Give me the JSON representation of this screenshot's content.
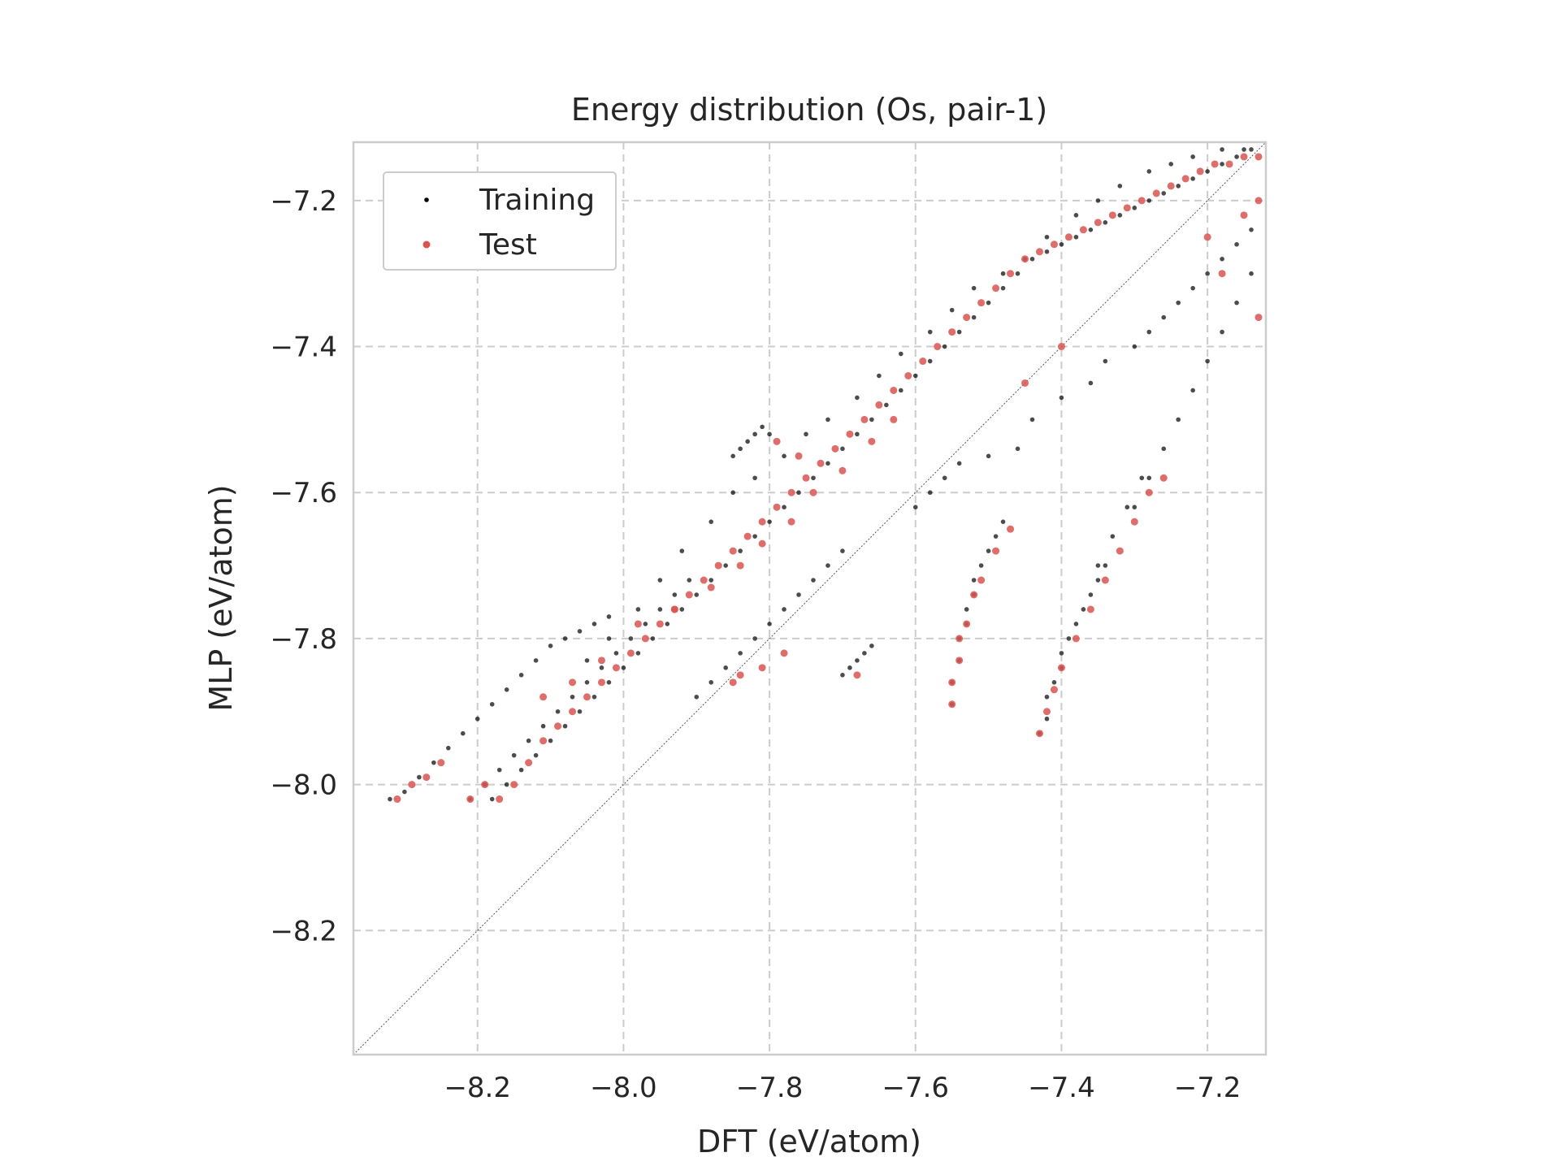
{
  "chart_data": {
    "type": "scatter",
    "title": "Energy distribution (Os, pair-1)",
    "xlabel": "DFT (eV/atom)",
    "ylabel": "MLP (eV/atom)",
    "xlim": [
      -8.37,
      -7.12
    ],
    "ylim": [
      -8.37,
      -7.12
    ],
    "x_ticks": [
      -8.2,
      -8.0,
      -7.8,
      -7.6,
      -7.4,
      -7.2
    ],
    "y_ticks": [
      -8.2,
      -8.0,
      -7.8,
      -7.6,
      -7.4,
      -7.2
    ],
    "x_tick_labels": [
      "−8.2",
      "−8.0",
      "−7.8",
      "−7.6",
      "−7.4",
      "−7.2"
    ],
    "y_tick_labels": [
      "−8.2",
      "−8.0",
      "−7.8",
      "−7.6",
      "−7.4",
      "−7.2"
    ],
    "grid": true,
    "grid_style": "dashed",
    "diagonal_reference_line": true,
    "legend_position": "upper-left",
    "colors": {
      "training": "#000000",
      "test": "#d9534f"
    },
    "series": [
      {
        "name": "Training",
        "x": [
          -8.32,
          -8.3,
          -8.28,
          -8.26,
          -8.24,
          -8.22,
          -8.2,
          -8.18,
          -8.16,
          -8.14,
          -8.12,
          -8.1,
          -8.08,
          -8.06,
          -8.04,
          -8.02,
          -8.21,
          -8.19,
          -8.17,
          -8.15,
          -8.13,
          -8.11,
          -8.09,
          -8.07,
          -8.05,
          -8.03,
          -8.01,
          -7.99,
          -7.97,
          -7.95,
          -7.93,
          -7.91,
          -8.18,
          -8.16,
          -8.14,
          -8.12,
          -8.1,
          -8.08,
          -8.06,
          -8.04,
          -8.02,
          -8.0,
          -7.98,
          -7.96,
          -7.94,
          -7.92,
          -7.9,
          -7.88,
          -7.86,
          -7.84,
          -7.82,
          -7.8,
          -7.78,
          -7.76,
          -7.74,
          -7.72,
          -7.7,
          -7.68,
          -7.66,
          -7.64,
          -7.62,
          -7.6,
          -7.58,
          -7.56,
          -7.54,
          -7.52,
          -7.5,
          -7.48,
          -7.46,
          -7.44,
          -7.42,
          -7.4,
          -7.38,
          -7.36,
          -7.34,
          -7.32,
          -7.3,
          -7.28,
          -7.26,
          -7.24,
          -7.22,
          -7.2,
          -7.18,
          -7.16,
          -7.14,
          -7.9,
          -7.88,
          -7.86,
          -7.84,
          -7.82,
          -7.8,
          -7.78,
          -7.76,
          -7.74,
          -7.72,
          -7.7,
          -7.55,
          -7.55,
          -7.54,
          -7.54,
          -7.53,
          -7.53,
          -7.52,
          -7.52,
          -7.51,
          -7.5,
          -7.49,
          -7.48,
          -7.43,
          -7.42,
          -7.42,
          -7.41,
          -7.4,
          -7.4,
          -7.39,
          -7.38,
          -7.37,
          -7.36,
          -7.35,
          -7.34,
          -7.7,
          -7.69,
          -7.68,
          -7.67,
          -7.66,
          -7.85,
          -7.84,
          -7.83,
          -7.82,
          -7.81,
          -7.8,
          -8.05,
          -8.02,
          -7.98,
          -7.95,
          -7.92,
          -7.88,
          -7.85,
          -7.82,
          -7.78,
          -7.75,
          -7.72,
          -7.68,
          -7.65,
          -7.62,
          -7.58,
          -7.55,
          -7.52,
          -7.48,
          -7.45,
          -7.42,
          -7.38,
          -7.35,
          -7.32,
          -7.28,
          -7.25,
          -7.22,
          -7.18,
          -7.15,
          -7.6,
          -7.58,
          -7.56,
          -7.54,
          -7.5,
          -7.46,
          -7.44,
          -7.4,
          -7.36,
          -7.34,
          -7.3,
          -7.28,
          -7.26,
          -7.24,
          -7.22,
          -7.2,
          -7.18,
          -7.16,
          -7.14,
          -7.3,
          -7.28,
          -7.26,
          -7.24,
          -7.22,
          -7.2,
          -7.18,
          -7.16,
          -7.14,
          -7.35,
          -7.33,
          -7.31,
          -7.29
        ],
        "y": [
          -8.02,
          -8.01,
          -7.99,
          -7.97,
          -7.95,
          -7.93,
          -7.91,
          -7.89,
          -7.87,
          -7.85,
          -7.83,
          -7.81,
          -7.8,
          -7.79,
          -7.78,
          -7.77,
          -8.02,
          -8.0,
          -7.98,
          -7.96,
          -7.94,
          -7.92,
          -7.9,
          -7.88,
          -7.86,
          -7.84,
          -7.82,
          -7.8,
          -7.78,
          -7.76,
          -7.74,
          -7.72,
          -8.02,
          -8.0,
          -7.98,
          -7.96,
          -7.94,
          -7.92,
          -7.9,
          -7.88,
          -7.86,
          -7.84,
          -7.82,
          -7.8,
          -7.78,
          -7.76,
          -7.74,
          -7.72,
          -7.7,
          -7.68,
          -7.66,
          -7.64,
          -7.62,
          -7.6,
          -7.58,
          -7.56,
          -7.54,
          -7.52,
          -7.5,
          -7.48,
          -7.46,
          -7.44,
          -7.42,
          -7.4,
          -7.38,
          -7.36,
          -7.34,
          -7.32,
          -7.3,
          -7.28,
          -7.27,
          -7.26,
          -7.25,
          -7.24,
          -7.23,
          -7.22,
          -7.21,
          -7.2,
          -7.19,
          -7.18,
          -7.17,
          -7.16,
          -7.15,
          -7.14,
          -7.13,
          -7.88,
          -7.86,
          -7.84,
          -7.82,
          -7.8,
          -7.78,
          -7.76,
          -7.74,
          -7.72,
          -7.7,
          -7.68,
          -7.89,
          -7.86,
          -7.83,
          -7.8,
          -7.78,
          -7.76,
          -7.74,
          -7.72,
          -7.7,
          -7.68,
          -7.66,
          -7.64,
          -7.93,
          -7.91,
          -7.88,
          -7.86,
          -7.84,
          -7.82,
          -7.8,
          -7.78,
          -7.76,
          -7.74,
          -7.72,
          -7.7,
          -7.85,
          -7.84,
          -7.83,
          -7.82,
          -7.81,
          -7.55,
          -7.54,
          -7.53,
          -7.52,
          -7.51,
          -7.52,
          -7.83,
          -7.8,
          -7.76,
          -7.72,
          -7.68,
          -7.64,
          -7.6,
          -7.58,
          -7.55,
          -7.52,
          -7.5,
          -7.47,
          -7.44,
          -7.41,
          -7.38,
          -7.35,
          -7.32,
          -7.3,
          -7.28,
          -7.25,
          -7.22,
          -7.2,
          -7.18,
          -7.16,
          -7.15,
          -7.14,
          -7.13,
          -7.13,
          -7.62,
          -7.6,
          -7.58,
          -7.56,
          -7.55,
          -7.54,
          -7.5,
          -7.47,
          -7.45,
          -7.42,
          -7.4,
          -7.38,
          -7.36,
          -7.34,
          -7.32,
          -7.3,
          -7.28,
          -7.26,
          -7.24,
          -7.62,
          -7.58,
          -7.54,
          -7.5,
          -7.46,
          -7.42,
          -7.38,
          -7.34,
          -7.3,
          -7.7,
          -7.66,
          -7.62,
          -7.58
        ]
      },
      {
        "name": "Test",
        "x": [
          -8.31,
          -8.29,
          -8.27,
          -8.25,
          -8.21,
          -8.19,
          -8.17,
          -8.15,
          -8.13,
          -8.11,
          -8.09,
          -8.07,
          -8.05,
          -8.03,
          -8.01,
          -7.99,
          -7.97,
          -7.95,
          -7.93,
          -7.91,
          -7.89,
          -7.87,
          -7.85,
          -7.83,
          -7.81,
          -7.79,
          -7.77,
          -7.75,
          -7.73,
          -7.71,
          -7.69,
          -7.67,
          -7.65,
          -7.63,
          -7.61,
          -7.59,
          -7.57,
          -7.55,
          -7.53,
          -7.51,
          -7.49,
          -7.47,
          -7.45,
          -7.43,
          -7.41,
          -7.39,
          -7.37,
          -7.35,
          -7.33,
          -7.31,
          -7.29,
          -7.27,
          -7.25,
          -7.23,
          -7.21,
          -7.19,
          -7.17,
          -7.15,
          -7.13,
          -8.11,
          -8.07,
          -8.03,
          -7.98,
          -7.93,
          -7.88,
          -7.84,
          -7.81,
          -7.77,
          -7.74,
          -7.7,
          -7.66,
          -7.63,
          -7.55,
          -7.55,
          -7.54,
          -7.54,
          -7.53,
          -7.52,
          -7.51,
          -7.49,
          -7.47,
          -7.43,
          -7.42,
          -7.41,
          -7.4,
          -7.38,
          -7.36,
          -7.34,
          -7.32,
          -7.3,
          -7.28,
          -7.26,
          -7.84,
          -7.81,
          -7.78,
          -7.76,
          -7.68,
          -7.85,
          -7.79,
          -7.4,
          -7.45,
          -7.2,
          -7.18,
          -7.15,
          -7.13,
          -7.13
        ],
        "y": [
          -8.02,
          -8.0,
          -7.99,
          -7.97,
          -8.02,
          -8.0,
          -8.02,
          -8.0,
          -7.97,
          -7.94,
          -7.92,
          -7.9,
          -7.88,
          -7.86,
          -7.84,
          -7.82,
          -7.8,
          -7.78,
          -7.76,
          -7.74,
          -7.72,
          -7.7,
          -7.68,
          -7.66,
          -7.64,
          -7.62,
          -7.6,
          -7.58,
          -7.56,
          -7.54,
          -7.52,
          -7.5,
          -7.48,
          -7.46,
          -7.44,
          -7.42,
          -7.4,
          -7.38,
          -7.36,
          -7.34,
          -7.32,
          -7.3,
          -7.28,
          -7.27,
          -7.26,
          -7.25,
          -7.24,
          -7.23,
          -7.22,
          -7.21,
          -7.2,
          -7.19,
          -7.18,
          -7.17,
          -7.16,
          -7.15,
          -7.15,
          -7.14,
          -7.14,
          -7.88,
          -7.86,
          -7.83,
          -7.78,
          -7.76,
          -7.73,
          -7.7,
          -7.67,
          -7.64,
          -7.6,
          -7.57,
          -7.53,
          -7.5,
          -7.89,
          -7.86,
          -7.83,
          -7.8,
          -7.78,
          -7.74,
          -7.72,
          -7.68,
          -7.65,
          -7.93,
          -7.9,
          -7.87,
          -7.84,
          -7.8,
          -7.76,
          -7.72,
          -7.68,
          -7.64,
          -7.6,
          -7.58,
          -7.85,
          -7.84,
          -7.82,
          -7.55,
          -7.85,
          -7.86,
          -7.53,
          -7.4,
          -7.45,
          -7.25,
          -7.3,
          -7.22,
          -7.2,
          -7.36
        ]
      }
    ]
  }
}
